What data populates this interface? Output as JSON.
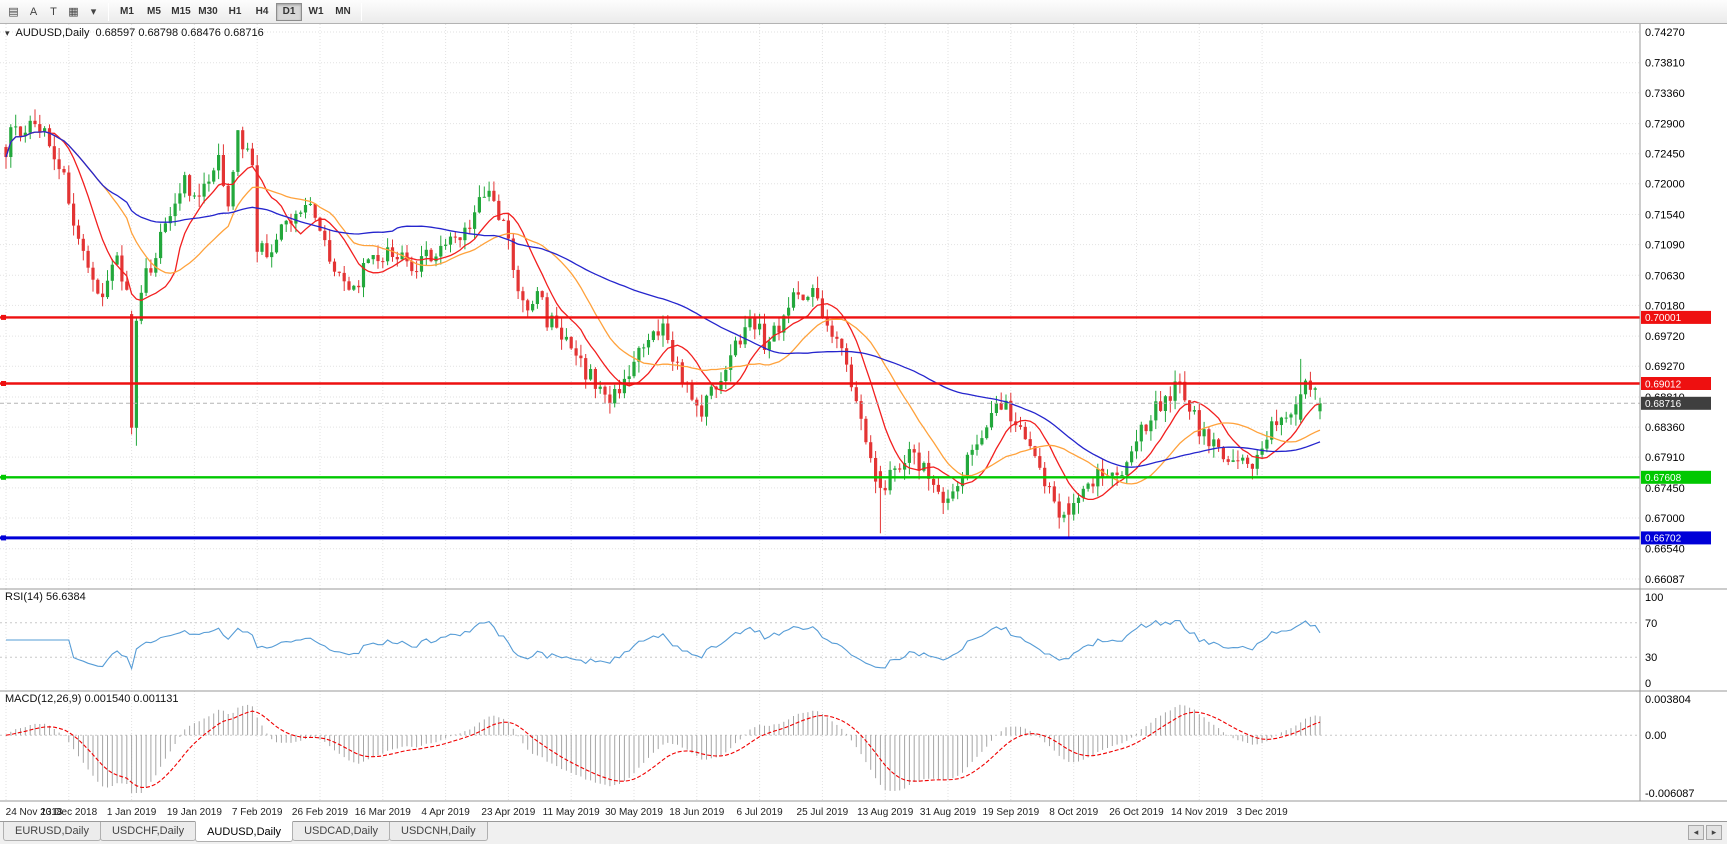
{
  "window": {
    "title": "AUDUSD,Daily"
  },
  "toolbar": {
    "icons": [
      {
        "name": "chart-list-icon",
        "glyph": "▤"
      },
      {
        "name": "font-icon",
        "glyph": "A"
      },
      {
        "name": "text-tool-icon",
        "glyph": "T"
      },
      {
        "name": "chart-type-icon",
        "glyph": "▦"
      },
      {
        "name": "chart-type-caret-icon",
        "glyph": "▾"
      }
    ],
    "timeframes": [
      "M1",
      "M5",
      "M15",
      "M30",
      "H1",
      "H4",
      "D1",
      "W1",
      "MN"
    ],
    "active_timeframe": "D1"
  },
  "chart_header": {
    "collapse_icon": "▾",
    "symbol_title": "AUDUSD,Daily",
    "ohlc": "0.68597 0.68798 0.68476 0.68716"
  },
  "colors": {
    "up": "#23a83c",
    "down": "#e33434",
    "grid": "#e2e2e2",
    "bid_tag_bg": "#3f3f3f"
  },
  "tabbar": {
    "tabs": [
      {
        "label": "EURUSD,Daily",
        "active": false
      },
      {
        "label": "USDCHF,Daily",
        "active": false
      },
      {
        "label": "AUDUSD,Daily",
        "active": true
      },
      {
        "label": "USDCAD,Daily",
        "active": false
      },
      {
        "label": "USDCNH,Daily",
        "active": false
      }
    ],
    "scroll_left_icon": "◂",
    "scroll_right_icon": "▸"
  },
  "chart_data": {
    "type": "candlestick",
    "title": "AUDUSD,Daily",
    "open": 0.68597,
    "high": 0.68798,
    "low": 0.68476,
    "close": 0.68716,
    "bars": 273,
    "volatility": 0.003,
    "y_axis": {
      "top": 0.7427,
      "bottom": 0.66087,
      "labels": [
        "0.74270",
        "0.73810",
        "0.73360",
        "0.72900",
        "0.72450",
        "0.72000",
        "0.71540",
        "0.71090",
        "0.70630",
        "0.70180",
        "0.69720",
        "0.69270",
        "0.68810",
        "0.68360",
        "0.67910",
        "0.67450",
        "0.67000",
        "0.66540",
        "0.66087"
      ]
    },
    "date_ticks": [
      {
        "index": 0,
        "label": "24 Nov 2018"
      },
      {
        "index": 13,
        "label": "13 Dec 2018"
      },
      {
        "index": 26,
        "label": "1 Jan 2019"
      },
      {
        "index": 39,
        "label": "19 Jan 2019"
      },
      {
        "index": 52,
        "label": "7 Feb 2019"
      },
      {
        "index": 65,
        "label": "26 Feb 2019"
      },
      {
        "index": 78,
        "label": "16 Mar 2019"
      },
      {
        "index": 91,
        "label": "4 Apr 2019"
      },
      {
        "index": 104,
        "label": "23 Apr 2019"
      },
      {
        "index": 117,
        "label": "11 May 2019"
      },
      {
        "index": 130,
        "label": "30 May 2019"
      },
      {
        "index": 143,
        "label": "18 Jun 2019"
      },
      {
        "index": 156,
        "label": "6 Jul 2019"
      },
      {
        "index": 169,
        "label": "25 Jul 2019"
      },
      {
        "index": 182,
        "label": "13 Aug 2019"
      },
      {
        "index": 195,
        "label": "31 Aug 2019"
      },
      {
        "index": 208,
        "label": "19 Sep 2019"
      },
      {
        "index": 221,
        "label": "8 Oct 2019"
      },
      {
        "index": 234,
        "label": "26 Oct 2019"
      },
      {
        "index": 247,
        "label": "14 Nov 2019"
      },
      {
        "index": 260,
        "label": "3 Dec 2019"
      }
    ],
    "close_anchors": [
      [
        0,
        0.724
      ],
      [
        2,
        0.73
      ],
      [
        3,
        0.726
      ],
      [
        5,
        0.728
      ],
      [
        7,
        0.729
      ],
      [
        9,
        0.726
      ],
      [
        11,
        0.723
      ],
      [
        13,
        0.718
      ],
      [
        15,
        0.711
      ],
      [
        17,
        0.706
      ],
      [
        19,
        0.703
      ],
      [
        21,
        0.706
      ],
      [
        23,
        0.709
      ],
      [
        25,
        0.704
      ],
      [
        26,
        0.7005
      ],
      [
        27,
        0.6995
      ],
      [
        29,
        0.706
      ],
      [
        32,
        0.712
      ],
      [
        35,
        0.718
      ],
      [
        37,
        0.7205
      ],
      [
        39,
        0.717
      ],
      [
        41,
        0.719
      ],
      [
        44,
        0.723
      ],
      [
        46,
        0.718
      ],
      [
        48,
        0.727
      ],
      [
        50,
        0.725
      ],
      [
        51,
        0.7235
      ],
      [
        52,
        0.711
      ],
      [
        54,
        0.709
      ],
      [
        57,
        0.713
      ],
      [
        60,
        0.715
      ],
      [
        63,
        0.718
      ],
      [
        65,
        0.713
      ],
      [
        68,
        0.708
      ],
      [
        71,
        0.703
      ],
      [
        74,
        0.707
      ],
      [
        78,
        0.709
      ],
      [
        81,
        0.71
      ],
      [
        84,
        0.706
      ],
      [
        87,
        0.709
      ],
      [
        91,
        0.711
      ],
      [
        95,
        0.713
      ],
      [
        98,
        0.717
      ],
      [
        100,
        0.7185
      ],
      [
        102,
        0.715
      ],
      [
        104,
        0.712
      ],
      [
        106,
        0.703
      ],
      [
        108,
        0.701
      ],
      [
        110,
        0.704
      ],
      [
        112,
        0.7
      ],
      [
        114,
        0.699
      ],
      [
        117,
        0.6945
      ],
      [
        120,
        0.692
      ],
      [
        123,
        0.689
      ],
      [
        126,
        0.688
      ],
      [
        128,
        0.6915
      ],
      [
        130,
        0.693
      ],
      [
        133,
        0.696
      ],
      [
        136,
        0.698
      ],
      [
        139,
        0.693
      ],
      [
        141,
        0.689
      ],
      [
        143,
        0.6855
      ],
      [
        146,
        0.6885
      ],
      [
        149,
        0.693
      ],
      [
        152,
        0.697
      ],
      [
        154,
        0.7015
      ],
      [
        157,
        0.696
      ],
      [
        160,
        0.699
      ],
      [
        163,
        0.703
      ],
      [
        166,
        0.7045
      ],
      [
        169,
        0.701
      ],
      [
        172,
        0.697
      ],
      [
        175,
        0.69
      ],
      [
        177,
        0.684
      ],
      [
        179,
        0.679
      ],
      [
        181,
        0.6745
      ],
      [
        183,
        0.6765
      ],
      [
        185,
        0.6785
      ],
      [
        188,
        0.6795
      ],
      [
        191,
        0.6765
      ],
      [
        193,
        0.674
      ],
      [
        195,
        0.6725
      ],
      [
        197,
        0.6745
      ],
      [
        200,
        0.68
      ],
      [
        203,
        0.685
      ],
      [
        206,
        0.6875
      ],
      [
        209,
        0.684
      ],
      [
        212,
        0.6795
      ],
      [
        215,
        0.6755
      ],
      [
        218,
        0.6715
      ],
      [
        220,
        0.6705
      ],
      [
        222,
        0.6735
      ],
      [
        224,
        0.6755
      ],
      [
        227,
        0.6775
      ],
      [
        230,
        0.6765
      ],
      [
        232,
        0.679
      ],
      [
        234,
        0.6815
      ],
      [
        237,
        0.6855
      ],
      [
        240,
        0.6885
      ],
      [
        243,
        0.69
      ],
      [
        245,
        0.6865
      ],
      [
        247,
        0.6835
      ],
      [
        249,
        0.6815
      ],
      [
        252,
        0.6795
      ],
      [
        255,
        0.6785
      ],
      [
        258,
        0.6775
      ],
      [
        260,
        0.68
      ],
      [
        262,
        0.683
      ],
      [
        264,
        0.6855
      ],
      [
        266,
        0.6845
      ],
      [
        268,
        0.6885
      ],
      [
        270,
        0.6905
      ],
      [
        271,
        0.6895
      ],
      [
        272,
        0.68716
      ]
    ],
    "special_bars": {
      "26": [
        0.7005,
        0.701,
        0.6825,
        0.6835
      ],
      "27": [
        0.6835,
        0.7,
        0.6808,
        0.6995
      ],
      "181": [
        0.677,
        0.6778,
        0.6677,
        0.6745
      ],
      "220": [
        0.6722,
        0.6732,
        0.6671,
        0.6705
      ],
      "268": [
        0.6847,
        0.6938,
        0.6842,
        0.6885
      ],
      "272": [
        0.68597,
        0.68798,
        0.68476,
        0.68716
      ]
    },
    "moving_averages": [
      {
        "name": "ma-fast",
        "period": 10,
        "color": "#f21f1f"
      },
      {
        "name": "ma-mid",
        "period": 21,
        "color": "#ffa23c"
      },
      {
        "name": "ma-slow",
        "period": 55,
        "color": "#2525cd"
      }
    ],
    "hlines": [
      {
        "price": 0.70001,
        "label": "0.70001",
        "color": "#ee1010",
        "width": 2.4
      },
      {
        "price": 0.69012,
        "label": "0.69012",
        "color": "#ee1010",
        "width": 2.4
      },
      {
        "price": 0.67608,
        "label": "0.67608",
        "color": "#00c800",
        "width": 2.4
      },
      {
        "price": 0.66702,
        "label": "0.66702",
        "color": "#0000d8",
        "width": 3
      }
    ],
    "bid": {
      "price": 0.68716,
      "label": "0.68716"
    },
    "rsi": {
      "label": "RSI(14) 56.6384",
      "period": 14,
      "value": 56.6384,
      "levels": [
        70,
        30
      ],
      "range": [
        0,
        100
      ],
      "axis_labels": [
        "100",
        "70",
        "30",
        "0"
      ],
      "color": "#569cd6"
    },
    "macd": {
      "label": "MACD(12,26,9) 0.001540 0.001131",
      "fast": 12,
      "slow": 26,
      "signal": 9,
      "value": 0.00154,
      "signal_value": 0.001131,
      "range": [
        -0.006087,
        0.003804
      ],
      "axis_labels": [
        "0.003804",
        "0.00",
        "-0.006087"
      ],
      "hist_color": "#a6a6a6",
      "signal_color": "#f00000"
    }
  }
}
